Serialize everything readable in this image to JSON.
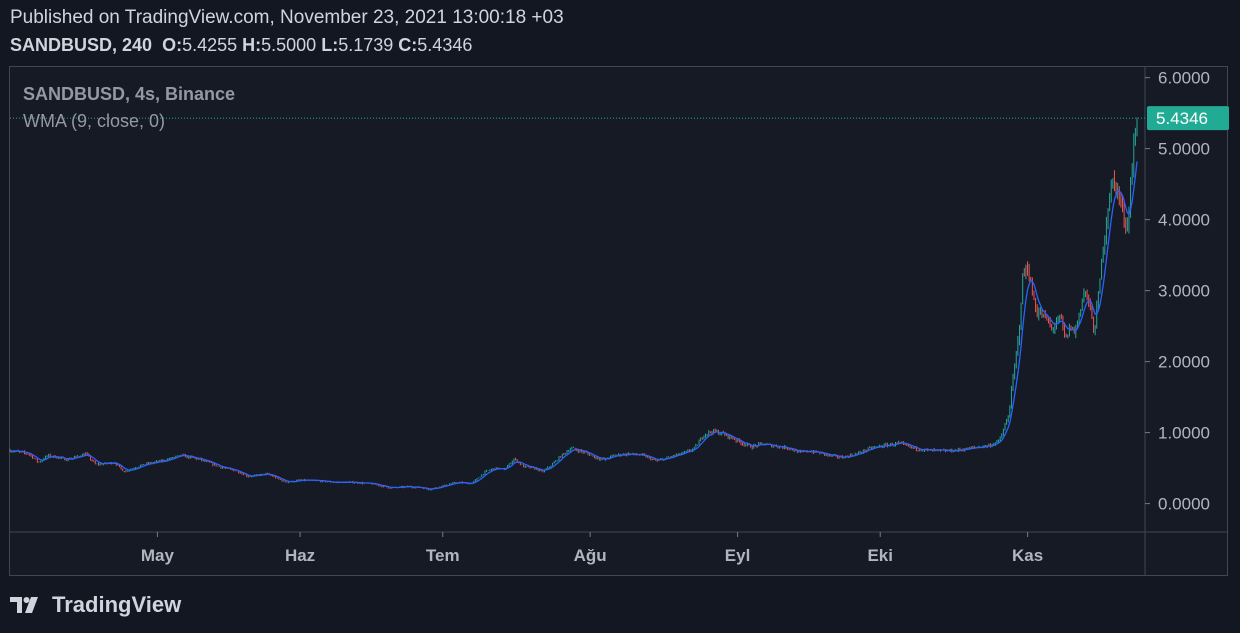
{
  "header": {
    "published": "Published on TradingView.com, November 23, 2021 13:00:18 +03",
    "symbol": "SANDBUSD, 240",
    "o_label": "O:",
    "o_value": "5.4255",
    "h_label": "H:",
    "h_value": "5.5000",
    "l_label": "L:",
    "l_value": "5.1739",
    "c_label": "C:",
    "c_value": "5.4346"
  },
  "legend": {
    "series": "SANDBUSD, 4s, Binance",
    "indicator": "WMA (9, close, 0)"
  },
  "brand": {
    "name": "TradingView"
  },
  "colors": {
    "background": "#131722",
    "up": "#26a69a",
    "down": "#ef5350",
    "wma": "#2962ff",
    "price_badge": "#22ab94"
  },
  "chart_data": {
    "type": "line",
    "symbol": "SANDBUSD",
    "interval": "4s",
    "exchange": "Binance",
    "indicator": "WMA (9, close, 0)",
    "price_label": "5.4346",
    "ylim": [
      -0.4,
      6.15
    ],
    "yticks": [
      0,
      1,
      2,
      3,
      4,
      5,
      6
    ],
    "ytick_labels": [
      "0.0000",
      "1.0000",
      "2.0000",
      "3.0000",
      "4.0000",
      "5.0000",
      "6.0000"
    ],
    "xlim": [
      0,
      237
    ],
    "xticks": [
      31,
      61,
      91,
      122,
      153,
      183,
      214
    ],
    "xtick_labels": [
      "May",
      "Haz",
      "Tem",
      "Ağu",
      "Eyl",
      "Eki",
      "Kas"
    ],
    "x_unit": "days since 2021-04-01",
    "x": [
      0,
      4,
      6,
      8,
      12,
      16,
      18,
      22,
      24,
      28,
      32,
      36,
      40,
      44,
      48,
      50,
      54,
      58,
      61,
      65,
      68,
      72,
      76,
      80,
      84,
      87,
      88,
      91,
      94,
      97,
      100,
      102,
      104,
      106,
      108,
      110,
      112,
      114,
      116,
      118,
      121,
      123,
      125,
      127,
      130,
      133,
      136,
      139,
      142,
      144,
      146,
      148,
      150,
      152,
      154,
      156,
      158,
      160,
      162,
      164,
      166,
      168,
      170,
      172,
      175,
      178,
      181,
      184,
      187,
      190,
      193,
      196,
      199,
      202,
      204,
      206,
      208,
      209,
      210,
      211,
      212,
      213,
      214,
      215,
      216,
      218,
      219,
      220,
      221,
      222,
      223,
      224,
      225,
      226,
      227,
      228,
      229,
      230,
      231,
      232,
      233,
      234,
      235,
      236,
      237
    ],
    "close": [
      0.75,
      0.7,
      0.58,
      0.68,
      0.62,
      0.7,
      0.55,
      0.58,
      0.45,
      0.55,
      0.6,
      0.68,
      0.62,
      0.52,
      0.45,
      0.38,
      0.42,
      0.3,
      0.33,
      0.32,
      0.3,
      0.3,
      0.28,
      0.22,
      0.24,
      0.22,
      0.2,
      0.25,
      0.3,
      0.28,
      0.45,
      0.5,
      0.48,
      0.63,
      0.52,
      0.5,
      0.45,
      0.55,
      0.68,
      0.78,
      0.72,
      0.65,
      0.62,
      0.68,
      0.7,
      0.68,
      0.6,
      0.66,
      0.72,
      0.78,
      0.98,
      1.02,
      0.98,
      0.92,
      0.85,
      0.8,
      0.84,
      0.82,
      0.8,
      0.78,
      0.72,
      0.74,
      0.72,
      0.68,
      0.65,
      0.7,
      0.78,
      0.82,
      0.85,
      0.78,
      0.75,
      0.74,
      0.75,
      0.78,
      0.8,
      0.82,
      0.88,
      1.05,
      1.25,
      1.8,
      2.3,
      3.2,
      3.35,
      2.95,
      2.7,
      2.6,
      2.45,
      2.55,
      2.6,
      2.3,
      2.5,
      2.4,
      2.75,
      3.0,
      2.8,
      2.4,
      3.0,
      3.7,
      4.25,
      4.55,
      4.4,
      4.1,
      3.9,
      4.8,
      5.43
    ]
  }
}
